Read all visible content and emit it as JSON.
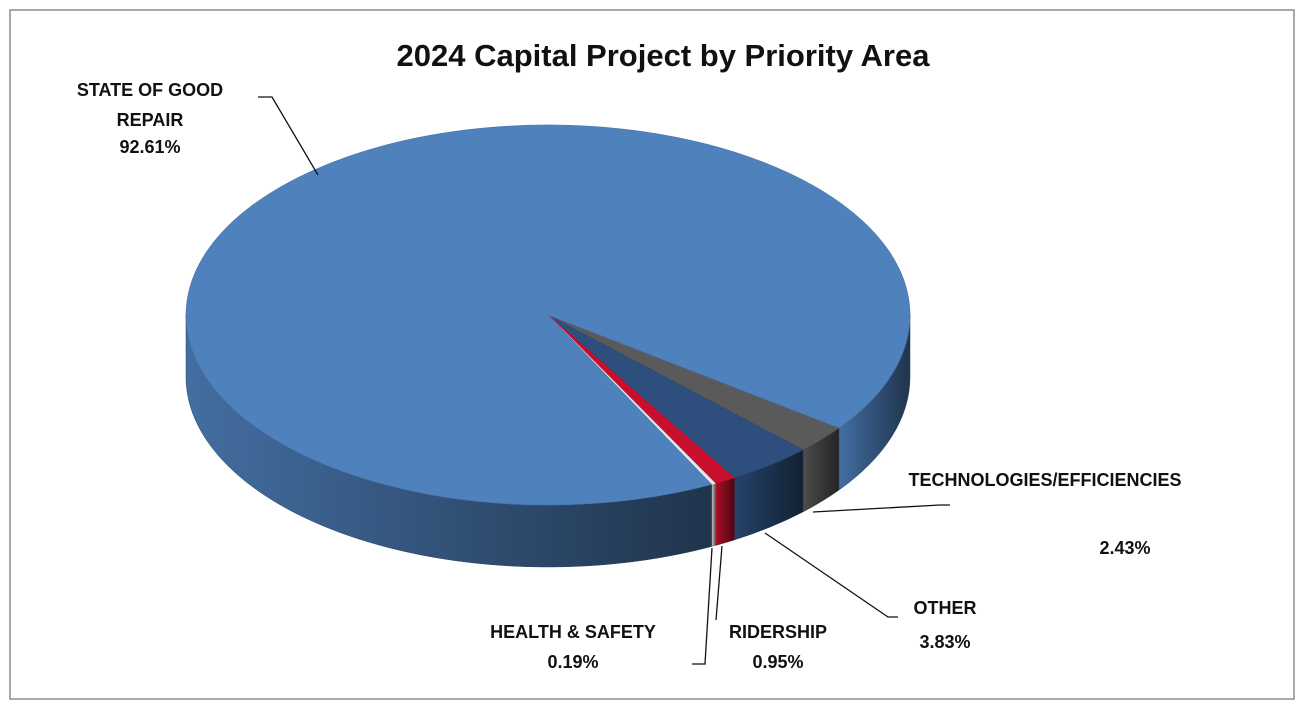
{
  "chart_data": {
    "type": "pie3d",
    "title": "2024 Capital Project by Priority Area",
    "categories": [
      "TECHNOLOGIES/EFFICIENCIES",
      "OTHER",
      "RIDERSHIP",
      "HEALTH & SAFETY",
      "STATE OF GOOD REPAIR"
    ],
    "values": [
      2.43,
      3.83,
      0.95,
      0.19,
      92.61
    ],
    "value_labels": [
      "2.43%",
      "3.83%",
      "0.95%",
      "0.19%",
      "92.61%"
    ],
    "colors": [
      "#5a5a5a",
      "#2e4f7e",
      "#c8102e",
      "#e8e8e8",
      "#4f81bd"
    ]
  }
}
